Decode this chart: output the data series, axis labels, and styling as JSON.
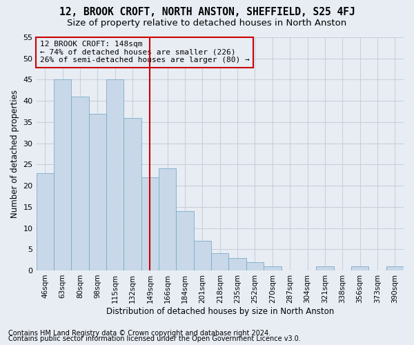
{
  "title": "12, BROOK CROFT, NORTH ANSTON, SHEFFIELD, S25 4FJ",
  "subtitle": "Size of property relative to detached houses in North Anston",
  "xlabel": "Distribution of detached houses by size in North Anston",
  "ylabel": "Number of detached properties",
  "footnote1": "Contains HM Land Registry data © Crown copyright and database right 2024.",
  "footnote2": "Contains public sector information licensed under the Open Government Licence v3.0.",
  "annotation_title": "12 BROOK CROFT: 148sqm",
  "annotation_line1": "← 74% of detached houses are smaller (226)",
  "annotation_line2": "26% of semi-detached houses are larger (80) →",
  "bar_values": [
    23,
    45,
    41,
    37,
    45,
    36,
    22,
    24,
    14,
    7,
    4,
    3,
    2,
    1,
    0,
    0,
    1,
    0,
    1,
    0,
    1
  ],
  "categories": [
    "46sqm",
    "63sqm",
    "80sqm",
    "98sqm",
    "115sqm",
    "132sqm",
    "149sqm",
    "166sqm",
    "184sqm",
    "201sqm",
    "218sqm",
    "235sqm",
    "252sqm",
    "270sqm",
    "287sqm",
    "304sqm",
    "321sqm",
    "338sqm",
    "356sqm",
    "373sqm",
    "390sqm"
  ],
  "vline_label_index": 6,
  "bar_color": "#c8d8e8",
  "bar_edge_color": "#7aaac8",
  "vline_color": "#cc0000",
  "grid_color": "#c8d0dc",
  "bg_color": "#e8edf4",
  "ylim_max": 55,
  "yticks": [
    0,
    5,
    10,
    15,
    20,
    25,
    30,
    35,
    40,
    45,
    50,
    55
  ],
  "annotation_box_color": "#cc0000",
  "title_fontsize": 10.5,
  "subtitle_fontsize": 9.5,
  "xlabel_fontsize": 8.5,
  "ylabel_fontsize": 8.5,
  "tick_fontsize": 7.5,
  "ytick_fontsize": 8,
  "footnote_fontsize": 7,
  "ann_fontsize": 8
}
